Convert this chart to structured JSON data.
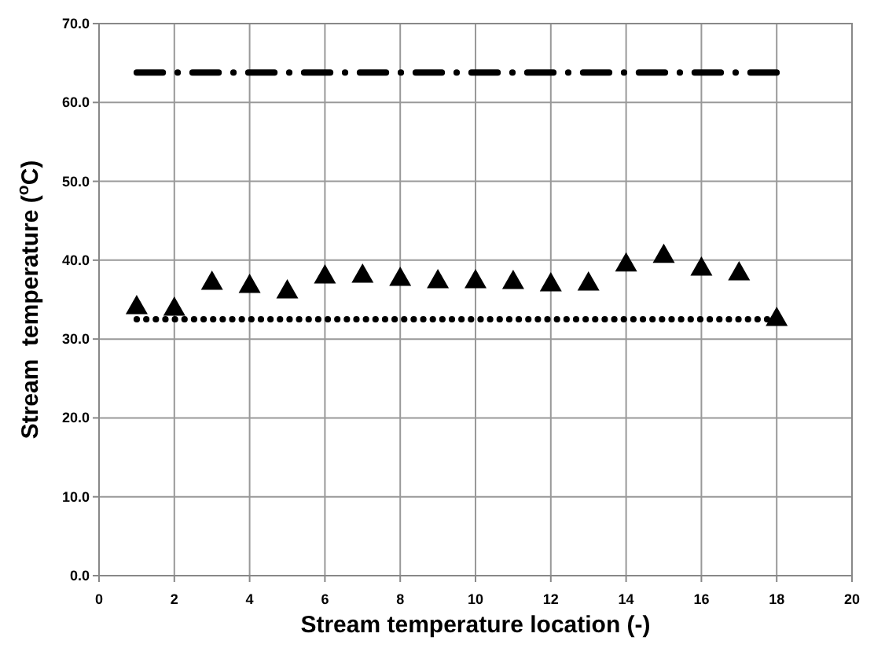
{
  "chart_data": {
    "type": "scatter",
    "xlabel": "Stream temperature location (-)",
    "ylabel": "Stream  temperature ($^{o}$C)",
    "xlim": [
      0,
      20
    ],
    "xticks": [
      0,
      2,
      4,
      6,
      8,
      10,
      12,
      14,
      16,
      18,
      20
    ],
    "ylim": [
      0,
      70
    ],
    "yticks": [
      {
        "value": 0,
        "label": "0.0"
      },
      {
        "value": 10,
        "label": "10.0"
      },
      {
        "value": 20,
        "label": "20.0"
      },
      {
        "value": 30,
        "label": "30.0"
      },
      {
        "value": 40,
        "label": "40.0"
      },
      {
        "value": 50,
        "label": "50.0"
      },
      {
        "value": 60,
        "label": "60.0"
      },
      {
        "value": 70,
        "label": "70.0"
      }
    ],
    "grid": true,
    "series": [
      {
        "type": "scatter",
        "color": "#000000",
        "marker": "triangle",
        "x": [
          1,
          2,
          3,
          4,
          5,
          6,
          7,
          8,
          9,
          10,
          11,
          12,
          13,
          14,
          15,
          16,
          17,
          18
        ],
        "values": [
          34.2,
          34.0,
          37.3,
          36.9,
          36.2,
          38.1,
          38.2,
          37.8,
          37.5,
          37.5,
          37.4,
          37.1,
          37.2,
          39.6,
          40.7,
          39.1,
          38.5,
          32.7
        ]
      },
      {
        "type": "line",
        "color": "#000000",
        "line_style": "dashdot",
        "marker": "none",
        "x": [
          1,
          18
        ],
        "values": [
          63.8,
          63.8
        ]
      },
      {
        "type": "line",
        "color": "#000000",
        "line_style": "dotted",
        "marker": "none",
        "x": [
          1,
          18
        ],
        "values": [
          32.5,
          32.5
        ]
      }
    ]
  }
}
